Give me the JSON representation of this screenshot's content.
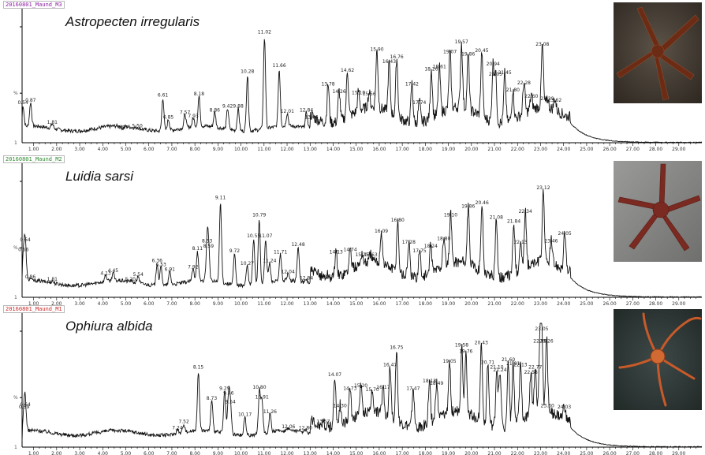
{
  "colors": {
    "trace": "#111111",
    "axis": "#000000"
  },
  "chart_data": [
    {
      "type": "line",
      "file_tag": "20160801_Maund_M3",
      "tag_color": "#8b1fa3",
      "title": "Astropecten irregularis",
      "photo": "brown-starfish-photo",
      "x_ticks": [
        "1.00",
        "2.00",
        "3.00",
        "4.00",
        "5.00",
        "6.00",
        "7.00",
        "8.00",
        "9.00",
        "10.00",
        "11.00",
        "12.00",
        "13.00",
        "14.00",
        "15.00",
        "16.00",
        "17.00",
        "18.00",
        "19.00",
        "20.00",
        "21.00",
        "22.00",
        "23.00",
        "24.00",
        "25.00",
        "26.00",
        "27.00",
        "28.00",
        "29.00"
      ],
      "xlim": [
        0.5,
        30.0
      ],
      "ylim": [
        0,
        100
      ],
      "y_ticks": [
        "%",
        "1"
      ],
      "peaks": [
        {
          "x": 0.54,
          "y": 30,
          "label": "0.54"
        },
        {
          "x": 0.87,
          "y": 32,
          "label": "0.87"
        },
        {
          "x": 1.81,
          "y": 14,
          "label": "1.81"
        },
        {
          "x": 4.87,
          "y": 10,
          "label": "4.87"
        },
        {
          "x": 5.5,
          "y": 11,
          "label": "5.50"
        },
        {
          "x": 6.61,
          "y": 36,
          "label": "6.61"
        },
        {
          "x": 6.85,
          "y": 18,
          "label": "6.85"
        },
        {
          "x": 7.57,
          "y": 22,
          "label": "7.57"
        },
        {
          "x": 7.93,
          "y": 19,
          "label": "7.93"
        },
        {
          "x": 8.18,
          "y": 37,
          "label": "8.18"
        },
        {
          "x": 8.86,
          "y": 24,
          "label": "8.86"
        },
        {
          "x": 9.42,
          "y": 27,
          "label": "9.42"
        },
        {
          "x": 9.88,
          "y": 27,
          "label": "9.88"
        },
        {
          "x": 10.28,
          "y": 55,
          "label": "10.28"
        },
        {
          "x": 11.02,
          "y": 87,
          "label": "11.02"
        },
        {
          "x": 11.66,
          "y": 60,
          "label": "11.66"
        },
        {
          "x": 12.01,
          "y": 23,
          "label": "12.01"
        },
        {
          "x": 12.84,
          "y": 24,
          "label": "12.84"
        },
        {
          "x": 13.06,
          "y": 18,
          "label": "13.06"
        },
        {
          "x": 13.78,
          "y": 45,
          "label": "13.78"
        },
        {
          "x": 14.26,
          "y": 39,
          "label": "14.26"
        },
        {
          "x": 14.62,
          "y": 56,
          "label": "14.62"
        },
        {
          "x": 15.1,
          "y": 38,
          "label": "15.10"
        },
        {
          "x": 15.56,
          "y": 37,
          "label": "15.56"
        },
        {
          "x": 15.9,
          "y": 73,
          "label": "15.90"
        },
        {
          "x": 16.43,
          "y": 63,
          "label": "16.43"
        },
        {
          "x": 16.76,
          "y": 67,
          "label": "16.76"
        },
        {
          "x": 17.42,
          "y": 45,
          "label": "17.42"
        },
        {
          "x": 17.74,
          "y": 30,
          "label": "17.74"
        },
        {
          "x": 18.26,
          "y": 57,
          "label": "18.26"
        },
        {
          "x": 18.61,
          "y": 59,
          "label": "18.61"
        },
        {
          "x": 19.07,
          "y": 71,
          "label": "19.07"
        },
        {
          "x": 19.57,
          "y": 79,
          "label": "19.57"
        },
        {
          "x": 19.86,
          "y": 69,
          "label": "19.86"
        },
        {
          "x": 20.45,
          "y": 72,
          "label": "20.45"
        },
        {
          "x": 20.94,
          "y": 61,
          "label": "20.94"
        },
        {
          "x": 21.05,
          "y": 53,
          "label": "21.05"
        },
        {
          "x": 21.45,
          "y": 54,
          "label": "21.45"
        },
        {
          "x": 21.8,
          "y": 40,
          "label": "21.80"
        },
        {
          "x": 22.28,
          "y": 46,
          "label": "22.28"
        },
        {
          "x": 22.6,
          "y": 35,
          "label": "22.60"
        },
        {
          "x": 23.08,
          "y": 77,
          "label": "23.08"
        },
        {
          "x": 23.29,
          "y": 33,
          "label": "23.29"
        },
        {
          "x": 23.62,
          "y": 32,
          "label": "23.62"
        }
      ]
    },
    {
      "type": "line",
      "file_tag": "20160801_Maund_M2",
      "tag_color": "#2e8b2e",
      "title": "Luidia sarsi",
      "photo": "red-starfish-photo",
      "x_ticks": [
        "1.00",
        "2.00",
        "3.00",
        "4.00",
        "5.00",
        "6.00",
        "7.00",
        "8.00",
        "9.00",
        "10.00",
        "11.00",
        "12.00",
        "13.00",
        "14.00",
        "15.00",
        "16.00",
        "17.00",
        "18.00",
        "19.00",
        "20.00",
        "21.00",
        "22.00",
        "23.00",
        "24.00",
        "25.00",
        "26.00",
        "27.00",
        "28.00",
        "29.00"
      ],
      "xlim": [
        0.5,
        30.0
      ],
      "ylim": [
        0,
        100
      ],
      "y_ticks": [
        "%",
        "1"
      ],
      "peaks": [
        {
          "x": 0.56,
          "y": 36,
          "label": "0.56"
        },
        {
          "x": 0.64,
          "y": 44,
          "label": "0.64"
        },
        {
          "x": 0.86,
          "y": 14,
          "label": "0.86"
        },
        {
          "x": 1.81,
          "y": 12,
          "label": "1.81"
        },
        {
          "x": 4.13,
          "y": 17,
          "label": "4.13"
        },
        {
          "x": 4.45,
          "y": 19,
          "label": "4.45"
        },
        {
          "x": 5.2,
          "y": 12,
          "label": "5.20"
        },
        {
          "x": 5.54,
          "y": 16,
          "label": "5.54"
        },
        {
          "x": 6.36,
          "y": 27,
          "label": "6.36"
        },
        {
          "x": 6.53,
          "y": 24,
          "label": "6.53"
        },
        {
          "x": 6.91,
          "y": 20,
          "label": "6.91"
        },
        {
          "x": 7.92,
          "y": 22,
          "label": "7.92"
        },
        {
          "x": 8.11,
          "y": 37,
          "label": "8.11"
        },
        {
          "x": 8.53,
          "y": 43,
          "label": "8.53"
        },
        {
          "x": 8.59,
          "y": 39,
          "label": "8.59"
        },
        {
          "x": 9.11,
          "y": 78,
          "label": "9.11"
        },
        {
          "x": 9.72,
          "y": 35,
          "label": "9.72"
        },
        {
          "x": 10.27,
          "y": 25,
          "label": "10.27"
        },
        {
          "x": 10.55,
          "y": 47,
          "label": "10.55"
        },
        {
          "x": 10.79,
          "y": 64,
          "label": "10.79"
        },
        {
          "x": 11.07,
          "y": 47,
          "label": "11.07"
        },
        {
          "x": 11.24,
          "y": 27,
          "label": "11.24"
        },
        {
          "x": 11.71,
          "y": 34,
          "label": "11.71"
        },
        {
          "x": 12.04,
          "y": 18,
          "label": "12.04"
        },
        {
          "x": 12.48,
          "y": 40,
          "label": "12.48"
        },
        {
          "x": 12.84,
          "y": 13,
          "label": "12.84"
        },
        {
          "x": 13.75,
          "y": 14,
          "label": "13.75"
        },
        {
          "x": 14.13,
          "y": 34,
          "label": "14.13"
        },
        {
          "x": 14.74,
          "y": 36,
          "label": "14.74"
        },
        {
          "x": 15.25,
          "y": 32,
          "label": "15.25"
        },
        {
          "x": 15.63,
          "y": 32,
          "label": "15.63"
        },
        {
          "x": 16.09,
          "y": 51,
          "label": "16.09"
        },
        {
          "x": 16.8,
          "y": 60,
          "label": "16.80"
        },
        {
          "x": 17.28,
          "y": 42,
          "label": "17.28"
        },
        {
          "x": 17.75,
          "y": 35,
          "label": "17.75"
        },
        {
          "x": 18.24,
          "y": 39,
          "label": "18.24"
        },
        {
          "x": 18.8,
          "y": 45,
          "label": "18.80"
        },
        {
          "x": 19.1,
          "y": 64,
          "label": "19.10"
        },
        {
          "x": 19.86,
          "y": 71,
          "label": "19.86"
        },
        {
          "x": 20.46,
          "y": 74,
          "label": "20.46"
        },
        {
          "x": 21.08,
          "y": 62,
          "label": "21.08"
        },
        {
          "x": 21.84,
          "y": 59,
          "label": "21.84"
        },
        {
          "x": 22.13,
          "y": 42,
          "label": "22.13"
        },
        {
          "x": 22.34,
          "y": 67,
          "label": "22.34"
        },
        {
          "x": 23.12,
          "y": 86,
          "label": "23.12"
        },
        {
          "x": 23.46,
          "y": 43,
          "label": "23.46"
        },
        {
          "x": 24.05,
          "y": 49,
          "label": "24.05"
        }
      ]
    },
    {
      "type": "line",
      "file_tag": "20160801_Maund_M1",
      "tag_color": "#cc2a2a",
      "title": "Ophiura albida",
      "photo": "orange-brittle-star-photo",
      "x_ticks": [
        "1.00",
        "2.00",
        "3.00",
        "4.00",
        "5.00",
        "6.00",
        "7.00",
        "8.00",
        "9.00",
        "10.00",
        "11.00",
        "12.00",
        "13.00",
        "14.00",
        "15.00",
        "16.00",
        "17.00",
        "18.00",
        "19.00",
        "20.00",
        "21.00",
        "22.00",
        "23.00",
        "24.00",
        "25.00",
        "26.00",
        "27.00",
        "28.00",
        "29.00"
      ],
      "xlim": [
        0.5,
        30.0
      ],
      "ylim": [
        0,
        100
      ],
      "y_ticks": [
        "%",
        "1"
      ],
      "peaks": [
        {
          "x": 0.59,
          "y": 30,
          "label": "0.59"
        },
        {
          "x": 0.64,
          "y": 32,
          "label": "0.64"
        },
        {
          "x": 7.24,
          "y": 13,
          "label": "7.24"
        },
        {
          "x": 7.52,
          "y": 18,
          "label": "7.52"
        },
        {
          "x": 8.15,
          "y": 62,
          "label": "8.15"
        },
        {
          "x": 8.73,
          "y": 37,
          "label": "8.73"
        },
        {
          "x": 9.29,
          "y": 45,
          "label": "9.29"
        },
        {
          "x": 9.46,
          "y": 41,
          "label": "9.46"
        },
        {
          "x": 9.54,
          "y": 34,
          "label": "9.54"
        },
        {
          "x": 10.17,
          "y": 24,
          "label": "10.17"
        },
        {
          "x": 10.8,
          "y": 46,
          "label": "10.80"
        },
        {
          "x": 10.91,
          "y": 38,
          "label": "10.91"
        },
        {
          "x": 11.26,
          "y": 26,
          "label": "11.26"
        },
        {
          "x": 12.06,
          "y": 14,
          "label": "12.06"
        },
        {
          "x": 12.8,
          "y": 13,
          "label": "12.80"
        },
        {
          "x": 13.57,
          "y": 18,
          "label": "13.57"
        },
        {
          "x": 14.07,
          "y": 56,
          "label": "14.07"
        },
        {
          "x": 14.3,
          "y": 31,
          "label": "14.30"
        },
        {
          "x": 14.73,
          "y": 45,
          "label": "14.73"
        },
        {
          "x": 15.2,
          "y": 47,
          "label": "15.20"
        },
        {
          "x": 15.7,
          "y": 44,
          "label": "15.70"
        },
        {
          "x": 16.17,
          "y": 46,
          "label": "16.17"
        },
        {
          "x": 16.47,
          "y": 64,
          "label": "16.47"
        },
        {
          "x": 16.75,
          "y": 78,
          "label": "16.75"
        },
        {
          "x": 17.47,
          "y": 45,
          "label": "17.47"
        },
        {
          "x": 18.18,
          "y": 51,
          "label": "18.18"
        },
        {
          "x": 18.49,
          "y": 49,
          "label": "18.49"
        },
        {
          "x": 19.05,
          "y": 67,
          "label": "19.05"
        },
        {
          "x": 19.58,
          "y": 80,
          "label": "19.58"
        },
        {
          "x": 19.76,
          "y": 75,
          "label": "19.76"
        },
        {
          "x": 20.43,
          "y": 82,
          "label": "20.43"
        },
        {
          "x": 20.71,
          "y": 66,
          "label": "20.71"
        },
        {
          "x": 21.1,
          "y": 62,
          "label": "21.10"
        },
        {
          "x": 21.24,
          "y": 60,
          "label": "21.24"
        },
        {
          "x": 21.6,
          "y": 68,
          "label": "21.60"
        },
        {
          "x": 21.81,
          "y": 65,
          "label": "21.81"
        },
        {
          "x": 22.13,
          "y": 64,
          "label": "22.13"
        },
        {
          "x": 22.58,
          "y": 58,
          "label": "22.58"
        },
        {
          "x": 22.77,
          "y": 62,
          "label": "22.77"
        },
        {
          "x": 22.98,
          "y": 83,
          "label": "22.98"
        },
        {
          "x": 23.05,
          "y": 93,
          "label": "23.05"
        },
        {
          "x": 23.26,
          "y": 83,
          "label": "23.26"
        },
        {
          "x": 23.3,
          "y": 31,
          "label": "23.30"
        },
        {
          "x": 24.03,
          "y": 30,
          "label": "24.03"
        }
      ]
    }
  ]
}
